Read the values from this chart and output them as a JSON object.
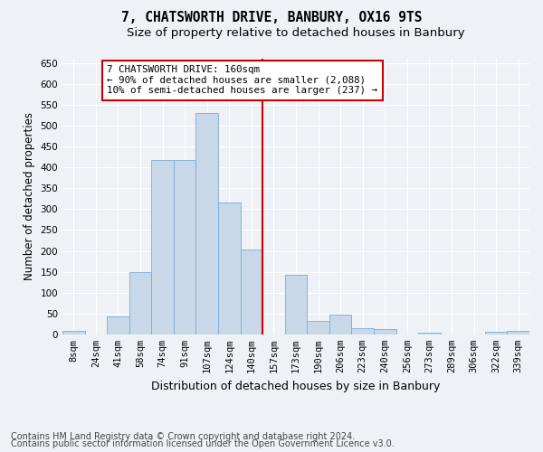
{
  "title": "7, CHATSWORTH DRIVE, BANBURY, OX16 9TS",
  "subtitle": "Size of property relative to detached houses in Banbury",
  "xlabel": "Distribution of detached houses by size in Banbury",
  "ylabel": "Number of detached properties",
  "categories": [
    "8sqm",
    "24sqm",
    "41sqm",
    "58sqm",
    "74sqm",
    "91sqm",
    "107sqm",
    "124sqm",
    "140sqm",
    "157sqm",
    "173sqm",
    "190sqm",
    "206sqm",
    "223sqm",
    "240sqm",
    "256sqm",
    "273sqm",
    "289sqm",
    "306sqm",
    "322sqm",
    "339sqm"
  ],
  "values": [
    8,
    0,
    44,
    150,
    418,
    418,
    530,
    315,
    204,
    0,
    142,
    33,
    48,
    16,
    14,
    0,
    5,
    0,
    0,
    7,
    8
  ],
  "bar_color": "#c8d8e8",
  "bar_edge_color": "#7aadd4",
  "vline_color": "#cc0000",
  "annotation_text": "7 CHATSWORTH DRIVE: 160sqm\n← 90% of detached houses are smaller (2,088)\n10% of semi-detached houses are larger (237) →",
  "annotation_box_color": "#cc0000",
  "ylim": [
    0,
    660
  ],
  "yticks": [
    0,
    50,
    100,
    150,
    200,
    250,
    300,
    350,
    400,
    450,
    500,
    550,
    600,
    650
  ],
  "footer_line1": "Contains HM Land Registry data © Crown copyright and database right 2024.",
  "footer_line2": "Contains public sector information licensed under the Open Government Licence v3.0.",
  "bg_color": "#eef2f7",
  "grid_color": "#ffffff",
  "title_fontsize": 10.5,
  "subtitle_fontsize": 9.5,
  "ylabel_fontsize": 8.5,
  "xlabel_fontsize": 9,
  "tick_fontsize": 7.5,
  "footer_fontsize": 7,
  "annot_fontsize": 7.8,
  "vline_x_idx": 9
}
